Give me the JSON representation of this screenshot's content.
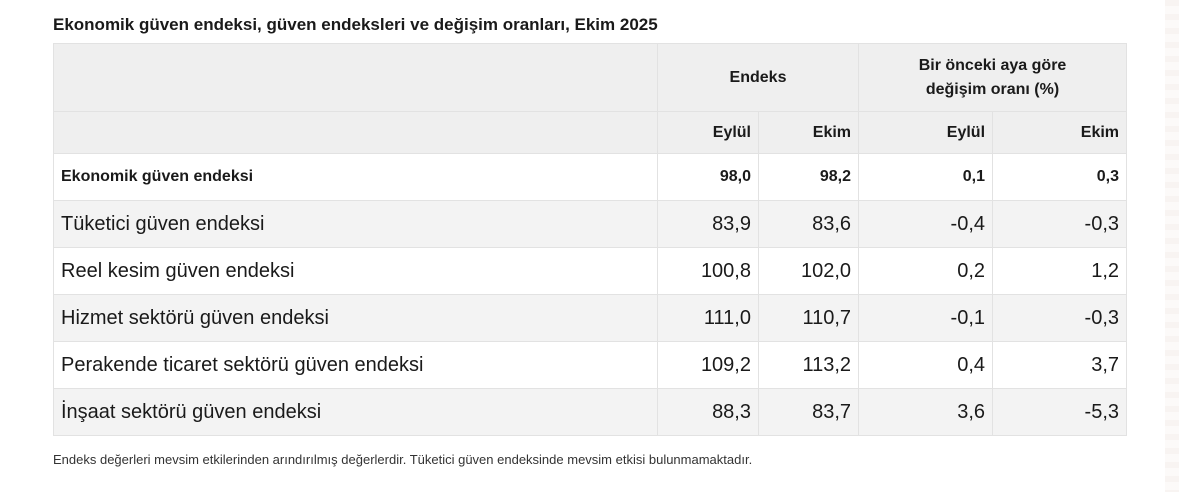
{
  "title": "Ekonomik güven endeksi, güven endeksleri ve değişim oranları, Ekim 2025",
  "table": {
    "group_headers": {
      "index": "Endeks",
      "change_line1": "Bir önceki aya göre",
      "change_line2": "değişim oranı (%)"
    },
    "sub_headers": [
      "Eylül",
      "Ekim",
      "Eylül",
      "Ekim"
    ],
    "rows": [
      {
        "label": "Ekonomik güven endeksi",
        "values": [
          "98,0",
          "98,2",
          "0,1",
          "0,3"
        ]
      },
      {
        "label": "Tüketici güven endeksi",
        "values": [
          "83,9",
          "83,6",
          "-0,4",
          "-0,3"
        ]
      },
      {
        "label": "Reel kesim güven endeksi",
        "values": [
          "100,8",
          "102,0",
          "0,2",
          "1,2"
        ]
      },
      {
        "label": "Hizmet sektörü güven endeksi",
        "values": [
          "111,0",
          "110,7",
          "-0,1",
          "-0,3"
        ]
      },
      {
        "label": "Perakende ticaret sektörü güven endeksi",
        "values": [
          "109,2",
          "113,2",
          "0,4",
          "3,7"
        ]
      },
      {
        "label": "İnşaat sektörü güven endeksi",
        "values": [
          "88,3",
          "83,7",
          "3,6",
          "-5,3"
        ]
      }
    ]
  },
  "footnote": "Endeks değerleri mevsim etkilerinden arındırılmış değerlerdir. Tüketici güven endeksinde mevsim etkisi bulunmamaktadır."
}
